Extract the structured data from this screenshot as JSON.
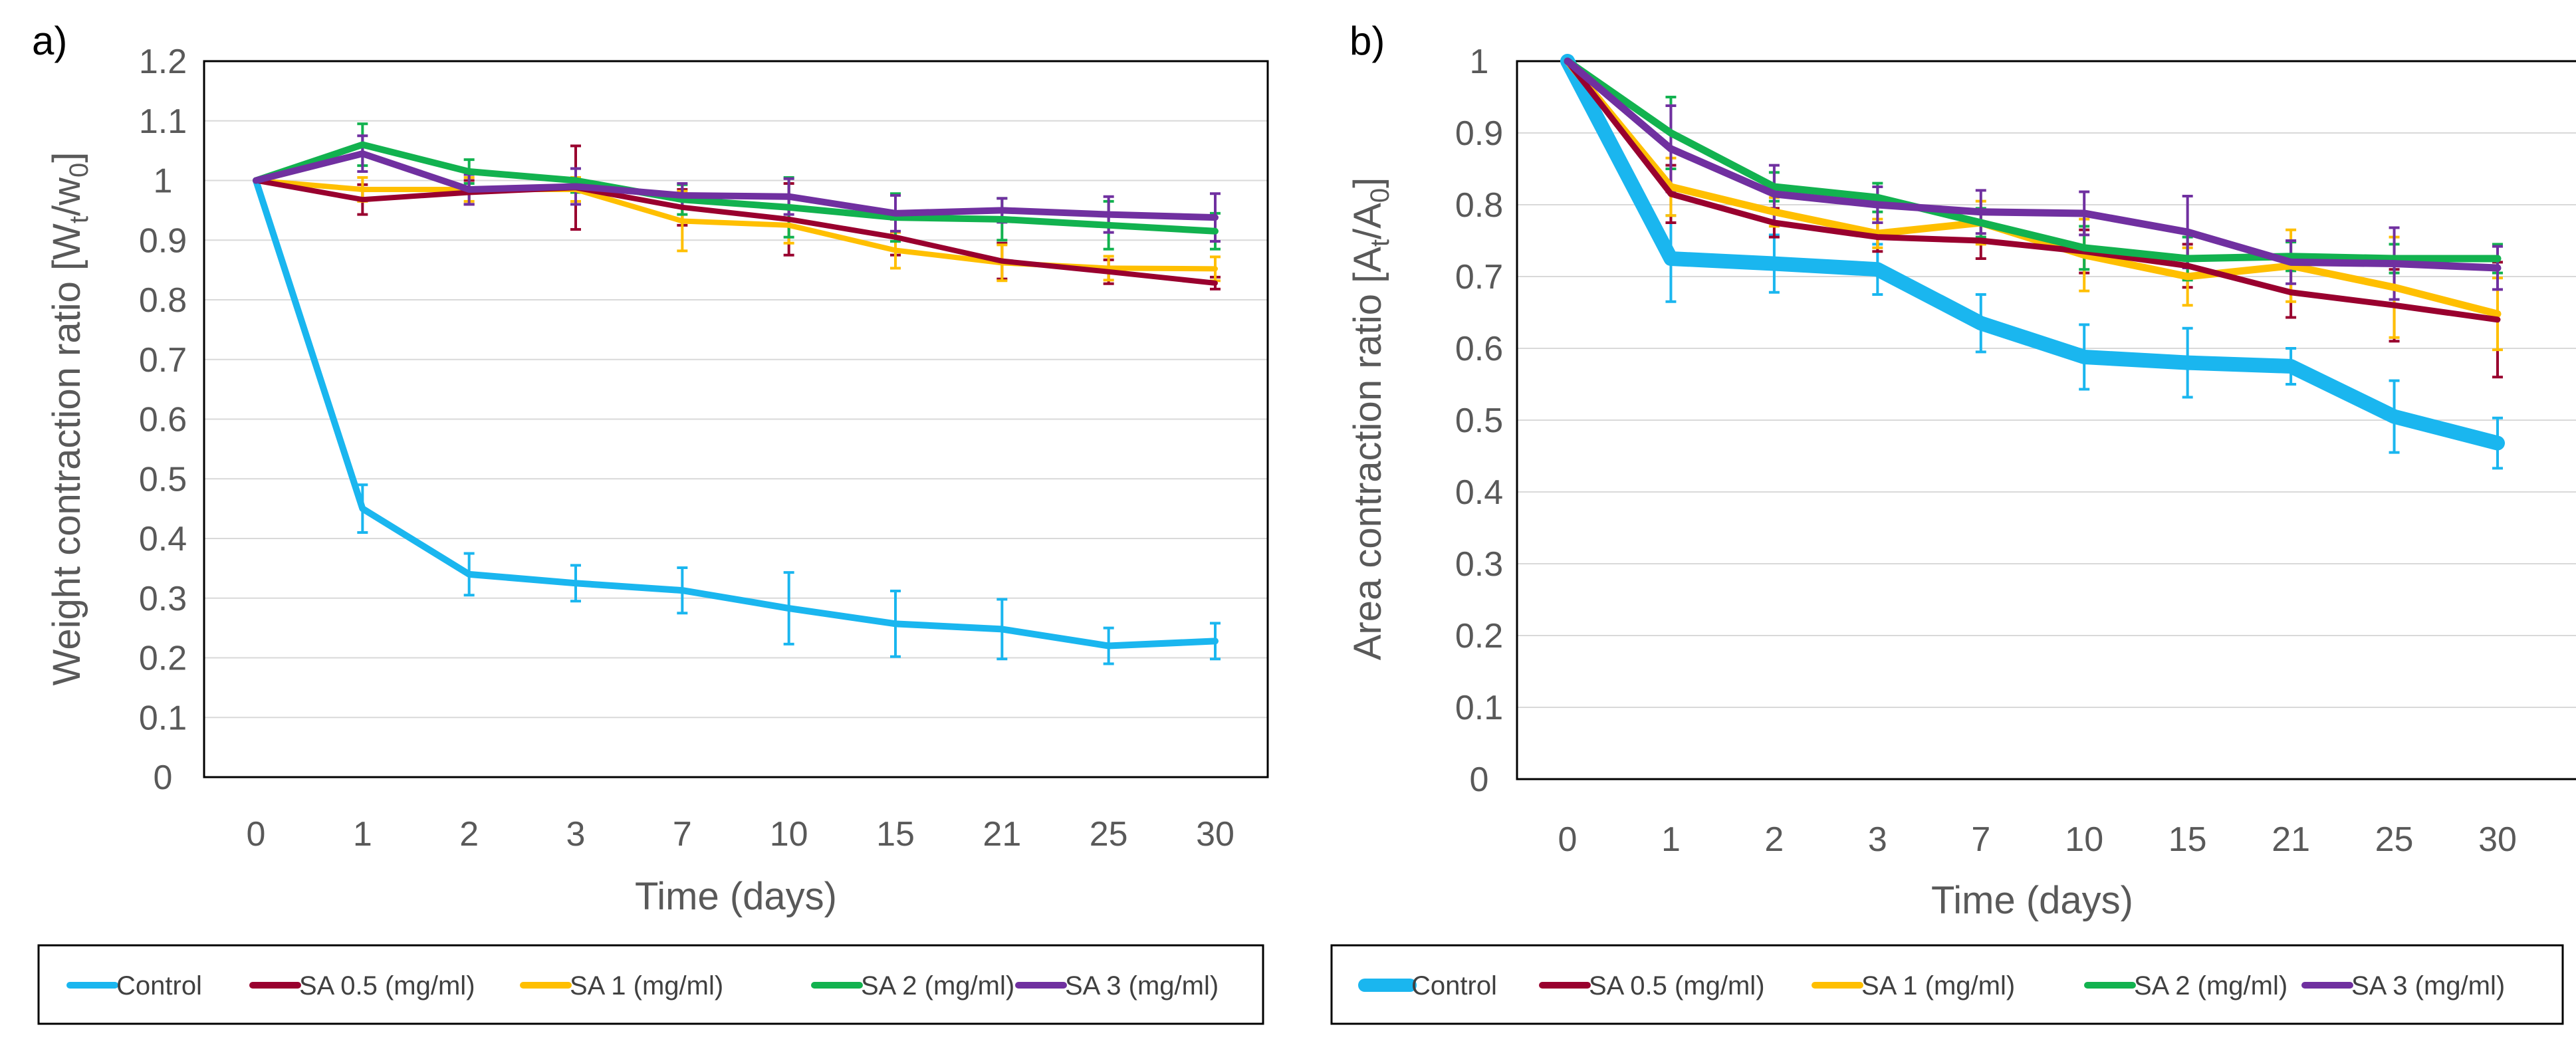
{
  "colors": {
    "Control": "#1ab6ef",
    "SA 0.5 (mg/ml)": "#99002e",
    "SA 1 (mg/ml)": "#ffbf00",
    "SA 2 (mg/ml)": "#12b24f",
    "SA 3 (mg/ml)": "#7030a0",
    "grid": "#d9d9d9",
    "frame": "#000000",
    "text": "#595959"
  },
  "chart_data": [
    {
      "type": "line",
      "panel_label": "a)",
      "xlabel": "Time (days)",
      "ylabel_main": "Weight contraction ratio [W",
      "ylabel_sub1": "t",
      "ylabel_mid": "/w",
      "ylabel_sub2": "0",
      "ylabel_end": "]",
      "ylim": [
        0,
        1.2
      ],
      "yticks": [
        "0",
        "0.1",
        "0.2",
        "0.3",
        "0.4",
        "0.5",
        "0.6",
        "0.7",
        "0.8",
        "0.9",
        "1",
        "1.1",
        "1.2"
      ],
      "categories": [
        "0",
        "1",
        "2",
        "3",
        "7",
        "10",
        "15",
        "21",
        "25",
        "30"
      ],
      "grid": true,
      "legend": "bottom",
      "series": [
        {
          "name": "Control",
          "values": [
            1,
            0.45,
            0.34,
            0.325,
            0.313,
            0.283,
            0.257,
            0.248,
            0.22,
            0.228
          ],
          "errors": [
            0,
            0.04,
            0.035,
            0.03,
            0.038,
            0.06,
            0.055,
            0.05,
            0.03,
            0.03
          ]
        },
        {
          "name": "SA 0.5 (mg/ml)",
          "values": [
            1,
            0.968,
            0.98,
            0.988,
            0.955,
            0.935,
            0.905,
            0.865,
            0.847,
            0.828
          ],
          "errors": [
            0,
            0.025,
            0.02,
            0.07,
            0.03,
            0.06,
            0.03,
            0.03,
            0.02,
            0.01
          ]
        },
        {
          "name": "SA 1 (mg/ml)",
          "values": [
            1,
            0.985,
            0.985,
            0.985,
            0.932,
            0.925,
            0.883,
            0.862,
            0.853,
            0.852
          ],
          "errors": [
            0,
            0.02,
            0.02,
            0.02,
            0.05,
            0.03,
            0.03,
            0.03,
            0.02,
            0.02
          ]
        },
        {
          "name": "SA 2 (mg/ml)",
          "values": [
            1,
            1.06,
            1.015,
            1.0,
            0.968,
            0.955,
            0.938,
            0.935,
            0.925,
            0.915
          ],
          "errors": [
            0,
            0.035,
            0.02,
            0.02,
            0.025,
            0.05,
            0.04,
            0.035,
            0.04,
            0.03
          ]
        },
        {
          "name": "SA 3 (mg/ml)",
          "values": [
            1,
            1.045,
            0.985,
            0.99,
            0.975,
            0.973,
            0.945,
            0.95,
            0.943,
            0.938
          ],
          "errors": [
            0,
            0.03,
            0.025,
            0.03,
            0.02,
            0.03,
            0.03,
            0.02,
            0.03,
            0.04
          ]
        }
      ]
    },
    {
      "type": "line",
      "panel_label": "b)",
      "xlabel": "Time (days)",
      "ylabel_main": "Area contraction ratio [A",
      "ylabel_sub1": "t",
      "ylabel_mid": "/A",
      "ylabel_sub2": "0",
      "ylabel_end": "]",
      "ylim": [
        0,
        1
      ],
      "yticks": [
        "0",
        "0.1",
        "0.2",
        "0.3",
        "0.4",
        "0.5",
        "0.6",
        "0.7",
        "0.8",
        "0.9",
        "1"
      ],
      "categories": [
        "0",
        "1",
        "2",
        "3",
        "7",
        "10",
        "15",
        "21",
        "25",
        "30"
      ],
      "grid": true,
      "legend": "bottom",
      "series": [
        {
          "name": "Control",
          "values": [
            1,
            0.725,
            0.718,
            0.71,
            0.635,
            0.588,
            0.58,
            0.575,
            0.505,
            0.468
          ],
          "errors": [
            0,
            0.06,
            0.04,
            0.035,
            0.04,
            0.045,
            0.048,
            0.025,
            0.05,
            0.035
          ]
        },
        {
          "name": "SA 0.5 (mg/ml)",
          "values": [
            1,
            0.815,
            0.775,
            0.755,
            0.75,
            0.735,
            0.715,
            0.678,
            0.66,
            0.64
          ],
          "errors": [
            0,
            0.04,
            0.02,
            0.02,
            0.025,
            0.03,
            0.03,
            0.035,
            0.05,
            0.08
          ]
        },
        {
          "name": "SA 1 (mg/ml)",
          "values": [
            1,
            0.825,
            0.79,
            0.76,
            0.775,
            0.73,
            0.7,
            0.715,
            0.685,
            0.648
          ],
          "errors": [
            0,
            0.04,
            0.02,
            0.02,
            0.03,
            0.05,
            0.04,
            0.05,
            0.07,
            0.05
          ]
        },
        {
          "name": "SA 2 (mg/ml)",
          "values": [
            1,
            0.9,
            0.825,
            0.81,
            0.775,
            0.74,
            0.725,
            0.728,
            0.725,
            0.725
          ],
          "errors": [
            0,
            0.05,
            0.02,
            0.02,
            0.02,
            0.03,
            0.03,
            0.02,
            0.02,
            0.02
          ]
        },
        {
          "name": "SA 3 (mg/ml)",
          "values": [
            1,
            0.878,
            0.815,
            0.8,
            0.79,
            0.788,
            0.762,
            0.72,
            0.718,
            0.712
          ],
          "errors": [
            0,
            0.06,
            0.04,
            0.025,
            0.03,
            0.03,
            0.05,
            0.03,
            0.05,
            0.03
          ]
        }
      ]
    }
  ]
}
